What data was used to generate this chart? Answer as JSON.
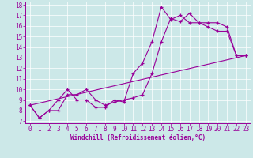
{
  "xlabel": "Windchill (Refroidissement éolien,°C)",
  "bg_color": "#cce8e8",
  "line_color": "#990099",
  "xlim": [
    -0.5,
    23.5
  ],
  "ylim": [
    6.8,
    18.3
  ],
  "xticks": [
    0,
    1,
    2,
    3,
    4,
    5,
    6,
    7,
    8,
    9,
    10,
    11,
    12,
    13,
    14,
    15,
    16,
    17,
    18,
    19,
    20,
    21,
    22,
    23
  ],
  "yticks": [
    7,
    8,
    9,
    10,
    11,
    12,
    13,
    14,
    15,
    16,
    17,
    18
  ],
  "line1_x": [
    0,
    1,
    2,
    3,
    4,
    5,
    6,
    7,
    8,
    9,
    10,
    11,
    12,
    13,
    14,
    15,
    16,
    17,
    18,
    19,
    20,
    21,
    22,
    23
  ],
  "line1_y": [
    8.5,
    7.3,
    8.0,
    9.0,
    10.0,
    9.0,
    9.0,
    8.3,
    8.3,
    9.0,
    8.8,
    11.5,
    12.5,
    14.5,
    17.8,
    16.6,
    17.0,
    16.3,
    16.3,
    15.9,
    15.5,
    15.5,
    13.2,
    13.2
  ],
  "line2_x": [
    0,
    1,
    2,
    3,
    4,
    5,
    6,
    7,
    8,
    9,
    10,
    11,
    12,
    13,
    14,
    15,
    16,
    17,
    18,
    19,
    20,
    21,
    22,
    23
  ],
  "line2_y": [
    8.5,
    7.3,
    8.0,
    8.0,
    9.5,
    9.5,
    10.0,
    9.0,
    8.5,
    8.8,
    9.0,
    9.2,
    9.5,
    11.5,
    14.5,
    16.7,
    16.4,
    17.2,
    16.3,
    16.3,
    16.3,
    15.9,
    13.2,
    13.2
  ],
  "line3_x": [
    0,
    23
  ],
  "line3_y": [
    8.5,
    13.2
  ],
  "tick_fontsize": 5.5,
  "xlabel_fontsize": 5.5
}
